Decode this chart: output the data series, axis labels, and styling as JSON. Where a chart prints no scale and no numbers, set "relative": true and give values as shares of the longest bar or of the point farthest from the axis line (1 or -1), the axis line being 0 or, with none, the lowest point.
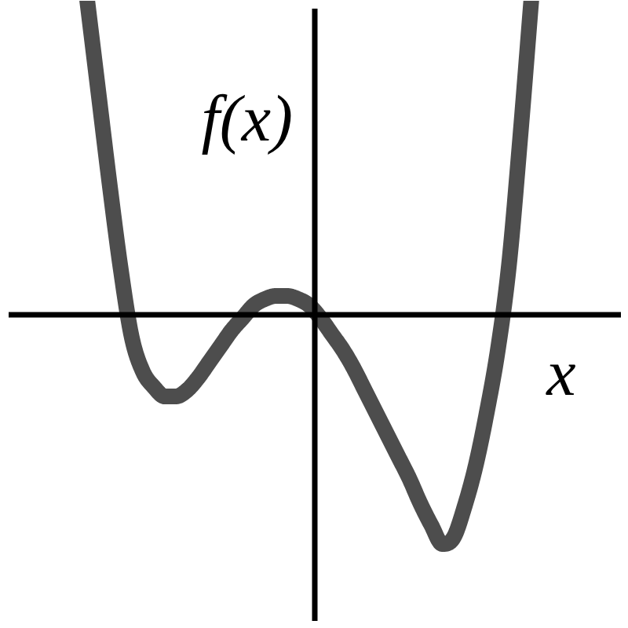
{
  "chart_data": {
    "type": "line",
    "relative": true,
    "xlabel": "x",
    "ylabel": "f(x)",
    "categories": [
      null,
      null,
      null,
      null,
      null,
      null,
      null,
      null,
      null,
      null,
      null,
      null,
      null,
      null,
      null,
      null,
      null,
      null,
      null,
      null,
      null,
      null,
      null,
      null,
      null,
      null,
      null,
      null,
      null,
      null,
      null,
      null,
      null,
      null,
      null,
      null,
      null,
      null,
      null,
      null,
      null,
      null
    ],
    "color": "#4d4d4d",
    "values": [
      1.0,
      0.71,
      0.42,
      0.15,
      -0.07,
      -0.18,
      -0.23,
      -0.26,
      -0.26,
      -0.24,
      -0.2,
      -0.15,
      -0.1,
      -0.05,
      -0.01,
      0.03,
      0.05,
      0.06,
      0.06,
      0.05,
      0.03,
      -0.01,
      -0.06,
      -0.11,
      -0.17,
      -0.24,
      -0.31,
      -0.38,
      -0.45,
      -0.52,
      -0.6,
      -0.67,
      -0.73,
      -0.71,
      -0.61,
      -0.48,
      -0.31,
      -0.11,
      0.16,
      0.56,
      1.0,
      null
    ],
    "line_style": "solid"
  }
}
